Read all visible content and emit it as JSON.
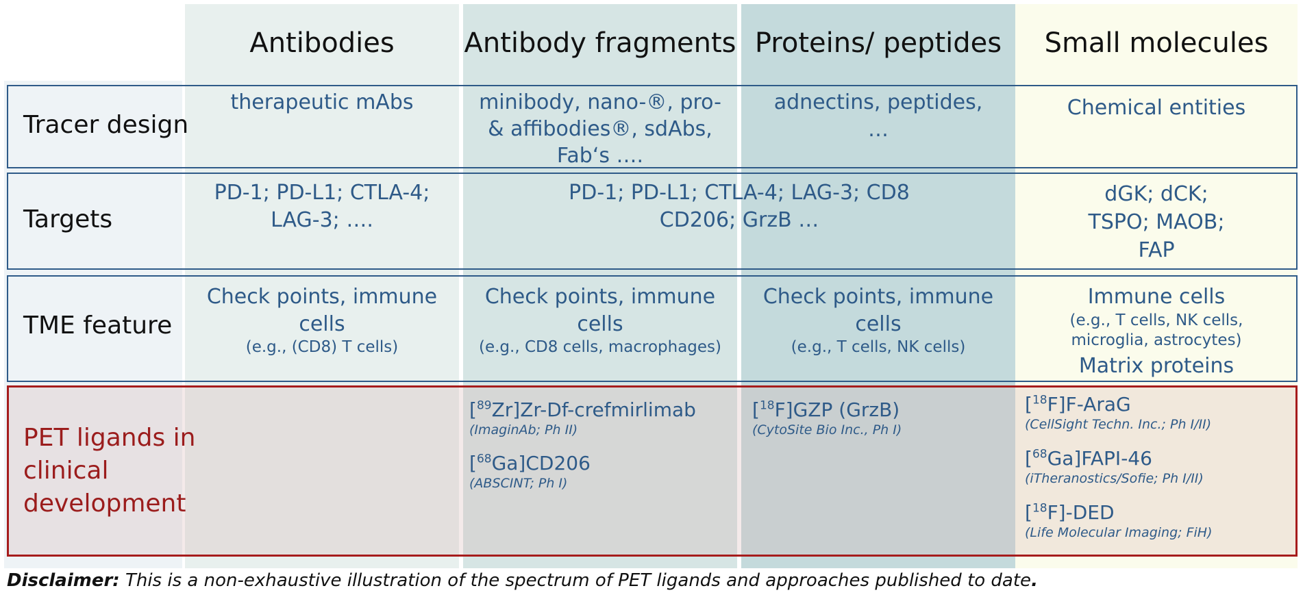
{
  "colors": {
    "heading_text": "#111111",
    "cell_text": "#2e5a88",
    "row_border": "#2e5a88",
    "pet_border": "#a61c1c",
    "pet_label_text": "#9b1c1c",
    "col_antibodies": "#e8f0ee",
    "col_fragments": "#d6e5e4",
    "col_proteins": "#c4dadc",
    "col_small": "#fbfcec",
    "label_column": "#eef3f6",
    "pet_row_tint": "#f0dede"
  },
  "columns": [
    {
      "label": "Antibodies"
    },
    {
      "label": "Antibody fragments"
    },
    {
      "label": "Proteins/ peptides"
    },
    {
      "label": "Small molecules"
    }
  ],
  "rows": {
    "tracer_design": {
      "label": "Tracer design",
      "antibodies": "therapeutic mAbs",
      "fragments": "minibody, nano-®, pro- & affibodies®, sdAbs, Fab‘s ….",
      "proteins": "adnectins, peptides, …",
      "small": "Chemical entities"
    },
    "targets": {
      "label": "Targets",
      "antibodies_line1": "PD-1; PD-L1; CTLA-4;",
      "antibodies_line2": "LAG-3; ….",
      "shared_line1": "PD-1; PD-L1; CTLA-4; LAG-3; CD8",
      "shared_line2": "CD206; GrzB …",
      "small_line1": "dGK; dCK;",
      "small_line2": "TSPO; MAOB;",
      "small_line3": "FAP"
    },
    "tme_feature": {
      "label": "TME feature",
      "antibodies_main": "Check points, immune cells",
      "antibodies_sub": "(e.g., (CD8) T cells)",
      "fragments_main": "Check points, immune cells",
      "fragments_sub": "(e.g., CD8 cells, macrophages)",
      "proteins_main": "Check points, immune cells",
      "proteins_sub": "(e.g., T cells, NK cells)",
      "small_main": "Immune cells",
      "small_sub": "(e.g., T cells, NK cells, microglia, astrocytes)",
      "small_extra": "Matrix proteins"
    },
    "pet_ligands": {
      "label_line1": "PET ligands in",
      "label_line2": "clinical",
      "label_line3": "development",
      "fragments": [
        {
          "iso": "89",
          "name": "Zr]Zr-Df-crefmirlimab",
          "note": "(ImaginAb; Ph II)"
        },
        {
          "iso": "68",
          "name": "Ga]CD206",
          "note": "(ABSCINT; Ph I)"
        }
      ],
      "proteins": [
        {
          "iso": "18",
          "name": "F]GZP (GrzB)",
          "note": "(CytoSite Bio Inc., Ph I)"
        }
      ],
      "small": [
        {
          "iso": "18",
          "name": "F]F-AraG",
          "note": "(CellSight Techn. Inc.; Ph I/II)"
        },
        {
          "iso": "68",
          "name": "Ga]FAPI-46",
          "note": "(iTheranostics/Sofie; Ph I/II)"
        },
        {
          "iso": "18",
          "name": "F]-DED",
          "note": "(Life Molecular Imaging; FiH)"
        }
      ]
    }
  },
  "footnote": {
    "lead": "Disclaimer:",
    "text": " This is a non-exhaustive illustration of the spectrum of PET ligands and approaches published to date",
    "end": "."
  }
}
